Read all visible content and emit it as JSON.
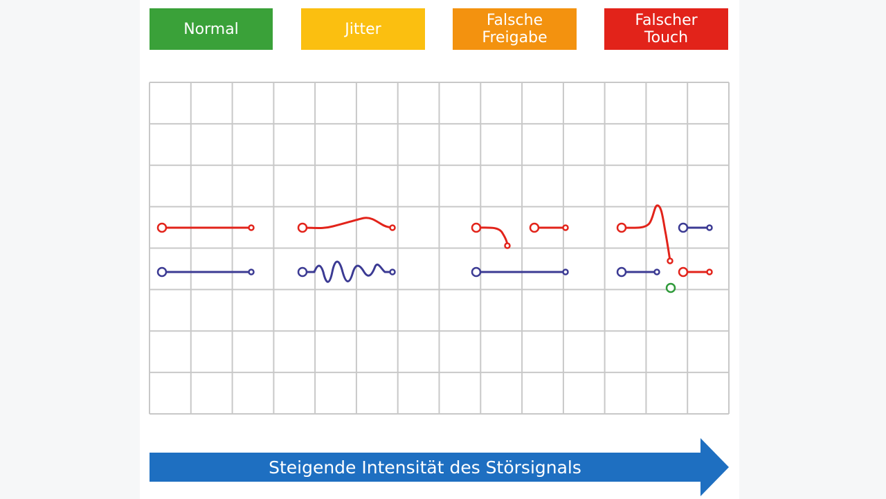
{
  "categories": [
    {
      "id": "normal",
      "label": "Normal",
      "color": "#3aa139"
    },
    {
      "id": "jitter",
      "label": "Jitter",
      "color": "#fbbf10"
    },
    {
      "id": "freigabe",
      "label": "Falsche\nFreigabe",
      "color": "#f3920f"
    },
    {
      "id": "touch",
      "label": "Falscher\nTouch",
      "color": "#e2231a"
    }
  ],
  "arrow": {
    "label": "Steigende Intensität des Störsignals",
    "color": "#1e6fc1"
  },
  "colors": {
    "grid_line": "#c8c8c8",
    "trace_red": "#e2231a",
    "trace_blue": "#3b3a93",
    "trace_green": "#2f9a3a"
  }
}
